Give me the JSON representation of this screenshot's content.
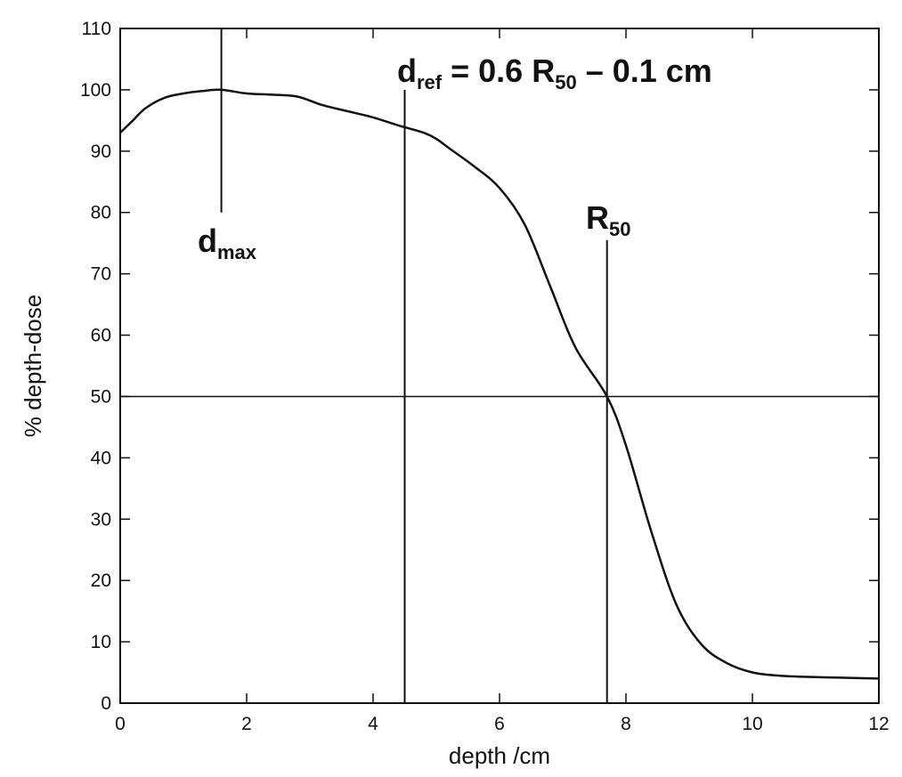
{
  "chart_data": {
    "type": "line",
    "xlabel": "depth /cm",
    "ylabel": "% depth-dose",
    "xlim": [
      0,
      12
    ],
    "ylim": [
      0,
      110
    ],
    "x_ticks": [
      0,
      2,
      4,
      6,
      8,
      10,
      12
    ],
    "y_ticks": [
      0,
      10,
      20,
      30,
      40,
      50,
      60,
      70,
      80,
      90,
      100,
      110
    ],
    "grid": false,
    "line_color": "#111111",
    "series": [
      {
        "x": [
          0.0,
          0.2,
          0.4,
          0.7,
          1.0,
          1.3,
          1.6,
          2.0,
          2.4,
          2.8,
          3.2,
          3.6,
          4.0,
          4.4,
          4.8,
          5.0,
          5.2,
          5.6,
          6.0,
          6.4,
          6.8,
          7.2,
          7.7,
          8.0,
          8.4,
          8.8,
          9.2,
          9.6,
          10.0,
          10.4,
          10.8,
          11.2,
          11.6,
          12.0
        ],
        "y": [
          93.0,
          95.0,
          97.0,
          98.7,
          99.4,
          99.8,
          100.0,
          99.4,
          99.2,
          98.9,
          97.5,
          96.5,
          95.5,
          94.2,
          93.0,
          92.0,
          90.5,
          87.5,
          84.0,
          78.0,
          68.0,
          58.0,
          50.0,
          42.0,
          28.0,
          16.0,
          9.5,
          6.5,
          5.0,
          4.5,
          4.3,
          4.2,
          4.1,
          4.0
        ]
      }
    ],
    "annotations": [
      {
        "text": "d",
        "sub": "max",
        "line_x": 1.6,
        "line_y_from": 80,
        "line_y_to": 110
      },
      {
        "text": "d",
        "sub": "ref",
        "line_x": 4.5,
        "line_y_from": 0,
        "line_y_to": 100,
        "label_rest": " = 0.6 R",
        "rest_sub": "50",
        "label_tail": " – 0.1 cm"
      },
      {
        "text": "R",
        "sub": "50",
        "line_x": 7.7,
        "line_y_from": 0,
        "line_y_to": 75.5
      }
    ],
    "hline": {
      "y": 50
    }
  }
}
